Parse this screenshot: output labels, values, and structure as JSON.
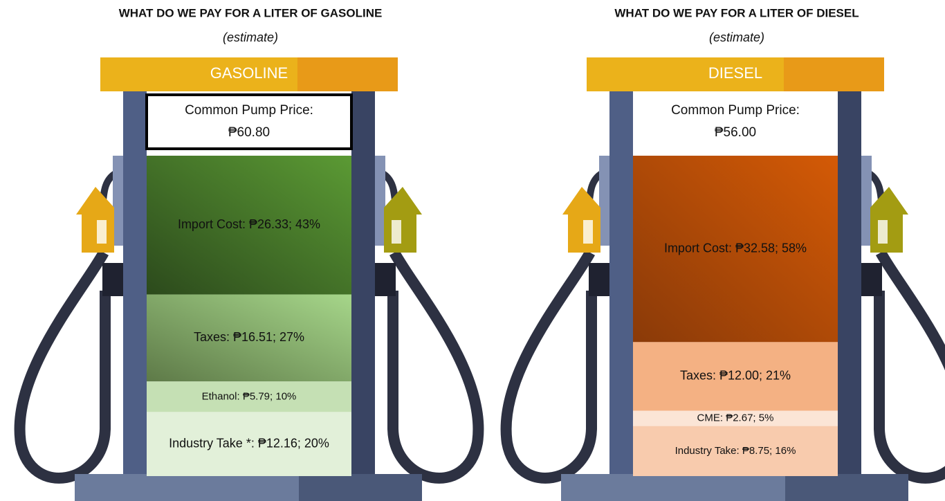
{
  "chart_data": [
    {
      "type": "pump-stack",
      "title": "WHAT DO WE PAY FOR A LITER OF GASOLINE",
      "subtitle": "(estimate)",
      "header": "GASOLINE",
      "price_caption": "Common Pump Price:",
      "price_label": "₱60.80",
      "nozzle_color": "#e6a817",
      "nozzle_color_right": "#a39c12",
      "segments": [
        {
          "label": "Import Cost: ₱26.33; 43%",
          "value": 26.33,
          "color": [
            "#2c4a1c",
            "#5b9a34"
          ]
        },
        {
          "label": "Taxes: ₱16.51; 27%",
          "value": 16.51,
          "color": [
            "#5e7a48",
            "#a6d68a"
          ]
        },
        {
          "label": "Ethanol: ₱5.79; 10%",
          "value": 5.79,
          "color": "#c5e0b4"
        },
        {
          "label": "Industry Take *: ₱12.16; 20%",
          "value": 12.16,
          "color": "#e2f0d9"
        }
      ]
    },
    {
      "type": "pump-stack",
      "title": "WHAT DO WE PAY FOR A LITER OF DIESEL",
      "subtitle": "(estimate)",
      "header": "DIESEL",
      "price_caption": "Common Pump Price:",
      "price_label": "₱56.00",
      "nozzle_color": "#e6a817",
      "nozzle_color_right": "#a39c12",
      "segments": [
        {
          "label": "Import Cost: ₱32.58; 58%",
          "value": 32.58,
          "color": [
            "#8a3a08",
            "#d45a06"
          ]
        },
        {
          "label": "Taxes: ₱12.00; 21%",
          "value": 12.0,
          "color": "#f4b183"
        },
        {
          "label": "CME: ₱2.67; 5%",
          "value": 2.67,
          "color": "#fbe5d6"
        },
        {
          "label": "Industry Take: ₱8.75; 16%",
          "value": 8.75,
          "color": "#f8cbad"
        }
      ]
    }
  ]
}
